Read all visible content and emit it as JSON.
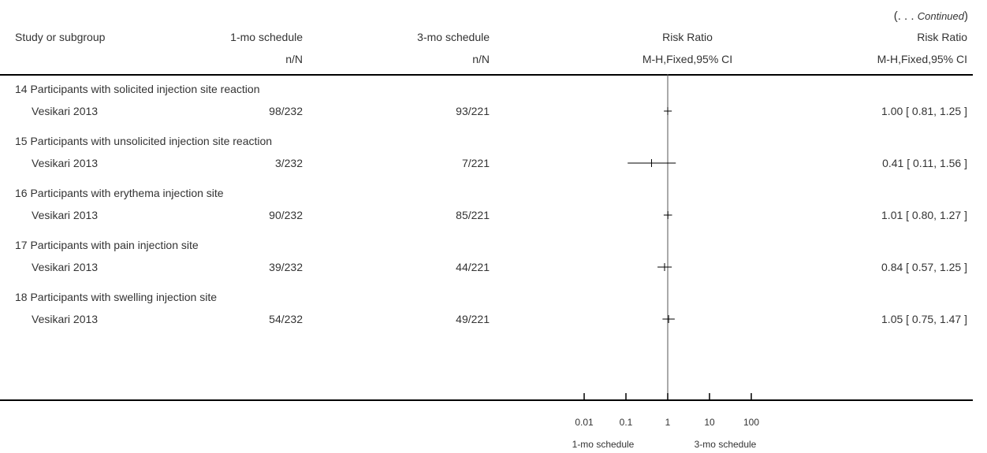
{
  "continued": {
    "open": "(. . . ",
    "word": "Continued",
    "close": ")"
  },
  "header": {
    "study": "Study or subgroup",
    "exp": "1-mo schedule",
    "ctrl": "3-mo schedule",
    "rr_plot": "Risk Ratio",
    "rr_text": "Risk Ratio",
    "exp_sub": "n/N",
    "ctrl_sub": "n/N",
    "method_plot": "M-H,Fixed,95% CI",
    "method_text": "M-H,Fixed,95% CI"
  },
  "axis": {
    "ticks": [
      "0.01",
      "0.1",
      "1",
      "10",
      "100"
    ],
    "favours_left": "1-mo schedule",
    "favours_right": "3-mo schedule"
  },
  "chart_data": {
    "type": "forest",
    "scale": "log",
    "xlim": [
      0.01,
      100
    ],
    "reference": 1,
    "subgroups": [
      {
        "title": "14 Participants with solicited injection site reaction",
        "study": "Vesikari 2013",
        "exp": "98/232",
        "ctrl": "93/221",
        "rr": 1.0,
        "lo": 0.81,
        "hi": 1.25,
        "ci_text": "1.00 [ 0.81, 1.25 ]"
      },
      {
        "title": "15 Participants with unsolicited injection site reaction",
        "study": "Vesikari 2013",
        "exp": "3/232",
        "ctrl": "7/221",
        "rr": 0.41,
        "lo": 0.11,
        "hi": 1.56,
        "ci_text": "0.41 [ 0.11, 1.56 ]"
      },
      {
        "title": "16 Participants with erythema injection site",
        "study": "Vesikari 2013",
        "exp": "90/232",
        "ctrl": "85/221",
        "rr": 1.01,
        "lo": 0.8,
        "hi": 1.27,
        "ci_text": "1.01 [ 0.80, 1.27 ]"
      },
      {
        "title": "17 Participants with pain injection site",
        "study": "Vesikari 2013",
        "exp": "39/232",
        "ctrl": "44/221",
        "rr": 0.84,
        "lo": 0.57,
        "hi": 1.25,
        "ci_text": "0.84 [ 0.57, 1.25 ]"
      },
      {
        "title": "18 Participants with swelling injection site",
        "study": "Vesikari 2013",
        "exp": "54/232",
        "ctrl": "49/221",
        "rr": 1.05,
        "lo": 0.75,
        "hi": 1.47,
        "ci_text": "1.05 [ 0.75, 1.47 ]"
      }
    ]
  }
}
